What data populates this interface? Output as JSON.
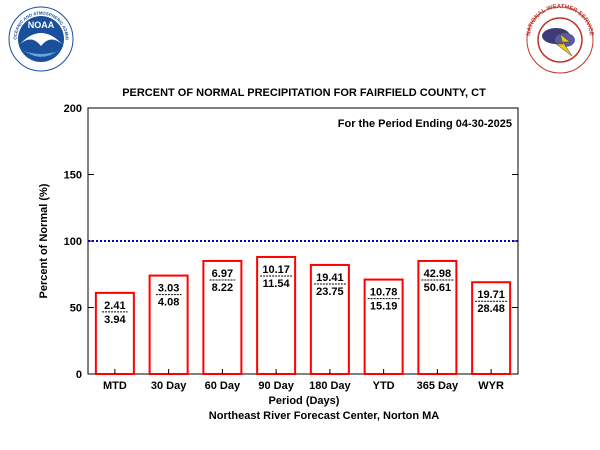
{
  "logos": {
    "left": {
      "arc_text": "NATIONAL OCEANIC AND ATMOSPHERIC ADMINISTRATION",
      "bottom_text": "U.S. DEPARTMENT OF COMMERCE",
      "wordmark": "NOAA",
      "color": "#1a4f9c"
    },
    "right": {
      "arc_text": "NATIONAL WEATHER SERVICE",
      "color": "#c0392b"
    }
  },
  "chart_data": {
    "type": "bar",
    "title": "PERCENT OF NORMAL PRECIPITATION FOR FAIRFIELD COUNTY, CT",
    "subtitle": "For the Period Ending 04-30-2025",
    "xlabel": "Period (Days)",
    "ylabel": "Percent of Normal (%)",
    "footer": "Northeast River Forecast Center, Norton MA",
    "ylim": [
      0,
      200
    ],
    "yticks": [
      "0",
      "50",
      "100",
      "150",
      "200"
    ],
    "reference_line": 100,
    "categories": [
      "MTD",
      "30 Day",
      "60 Day",
      "90 Day",
      "180 Day",
      "YTD",
      "365 Day",
      "WYR"
    ],
    "values": [
      61,
      74,
      85,
      88,
      82,
      71,
      85,
      69
    ],
    "observed": [
      "2.41",
      "3.03",
      "6.97",
      "10.17",
      "19.41",
      "10.78",
      "42.98",
      "19.71"
    ],
    "normal": [
      "3.94",
      "4.08",
      "8.22",
      "11.54",
      "23.75",
      "15.19",
      "50.61",
      "28.48"
    ],
    "colors": {
      "bar": "#ff0000",
      "reference_line": "#0000cc",
      "axis": "#000000"
    },
    "grid": false
  }
}
